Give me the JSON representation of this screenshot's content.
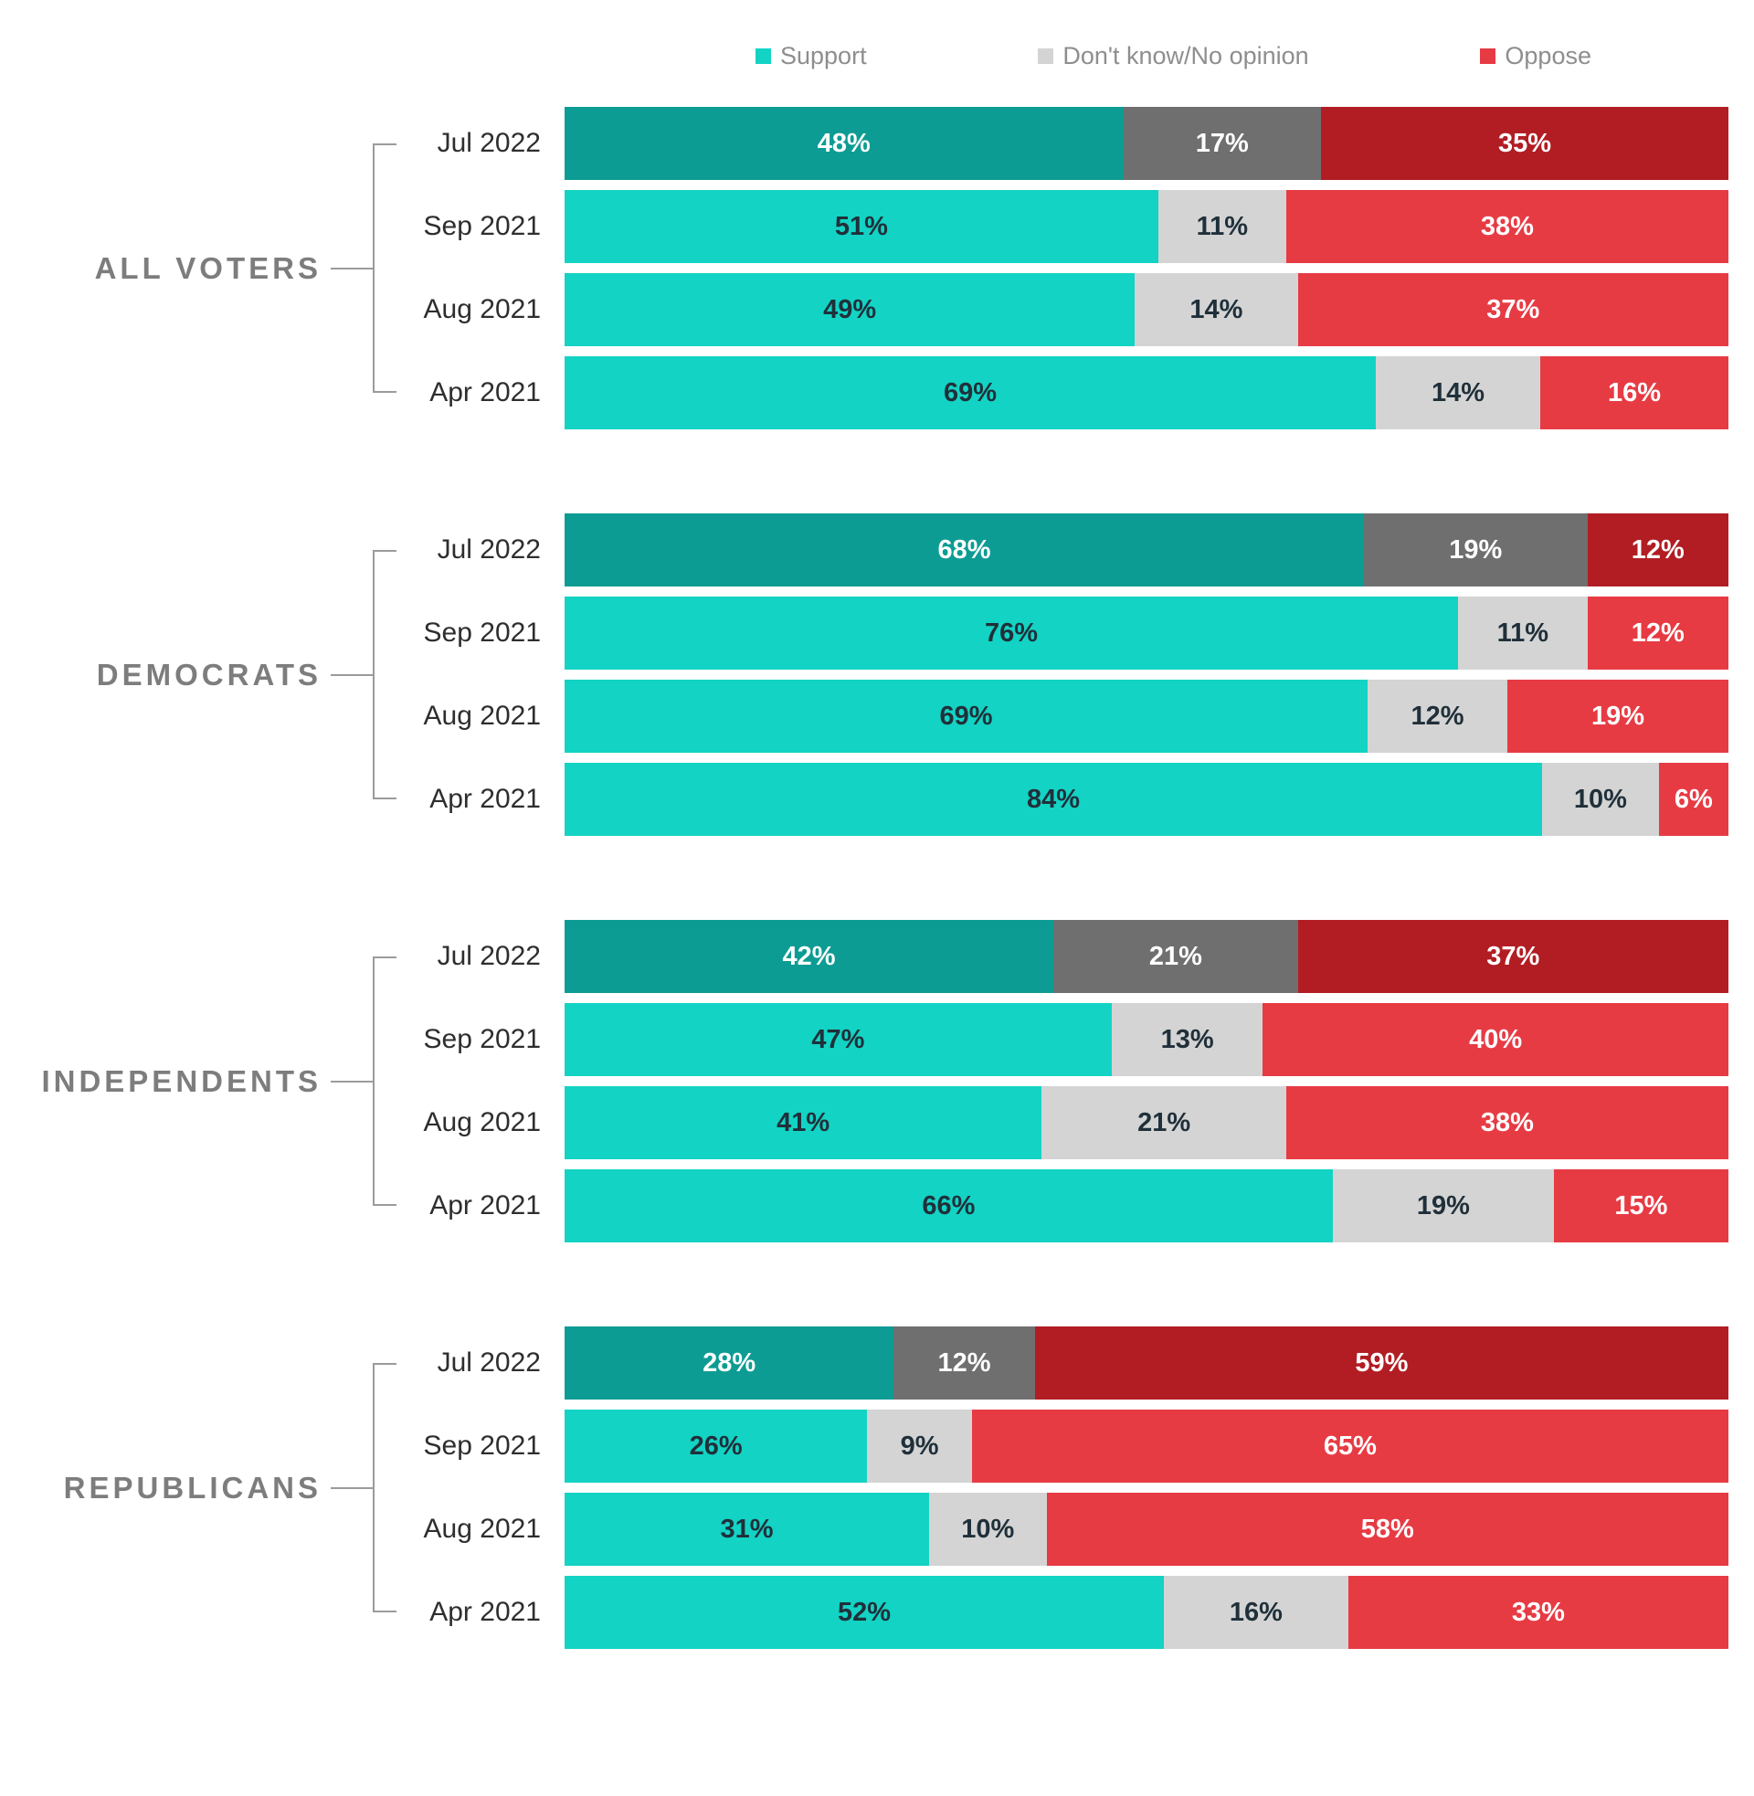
{
  "legend": {
    "items": [
      {
        "key": "support",
        "label": "Support",
        "color": "#13d3c4"
      },
      {
        "key": "dont-know",
        "label": "Don't know/No opinion",
        "color": "#d4d4d4"
      },
      {
        "key": "oppose",
        "label": "Oppose",
        "color": "#e73b44"
      }
    ]
  },
  "colors": {
    "support": "#13d3c4",
    "support_dark": "#0d9c93",
    "neutral": "#d4d4d4",
    "neutral_dark": "#6f6f6f",
    "oppose": "#e73b44",
    "oppose_dark": "#b11d23",
    "label_dark": "#20303a",
    "label_light": "#ffffff",
    "group_label": "#7d7d7d",
    "bracket_line": "#9b9b9b",
    "date_label": "#2e2e2e",
    "legend_text": "#8e8e8e"
  },
  "chart_data": {
    "type": "bar",
    "variant": "horizontal-stacked",
    "unit": "%",
    "x_range": [
      0,
      100
    ],
    "legend_position": "top",
    "series": [
      {
        "key": "support",
        "name": "Support"
      },
      {
        "key": "dont-know",
        "name": "Don't know/No opinion"
      },
      {
        "key": "oppose",
        "name": "Oppose"
      }
    ],
    "groups": [
      {
        "label": "ALL VOTERS",
        "rows": [
          {
            "date": "Jul 2022",
            "values": [
              48,
              17,
              35
            ],
            "emphasis": true
          },
          {
            "date": "Sep 2021",
            "values": [
              51,
              11,
              38
            ],
            "emphasis": false
          },
          {
            "date": "Aug 2021",
            "values": [
              49,
              14,
              37
            ],
            "emphasis": false
          },
          {
            "date": "Apr 2021",
            "values": [
              69,
              14,
              16
            ],
            "emphasis": false
          }
        ]
      },
      {
        "label": "DEMOCRATS",
        "rows": [
          {
            "date": "Jul 2022",
            "values": [
              68,
              19,
              12
            ],
            "emphasis": true
          },
          {
            "date": "Sep 2021",
            "values": [
              76,
              11,
              12
            ],
            "emphasis": false
          },
          {
            "date": "Aug 2021",
            "values": [
              69,
              12,
              19
            ],
            "emphasis": false
          },
          {
            "date": "Apr 2021",
            "values": [
              84,
              10,
              6
            ],
            "emphasis": false
          }
        ]
      },
      {
        "label": "INDEPENDENTS",
        "rows": [
          {
            "date": "Jul 2022",
            "values": [
              42,
              21,
              37
            ],
            "emphasis": true
          },
          {
            "date": "Sep 2021",
            "values": [
              47,
              13,
              40
            ],
            "emphasis": false
          },
          {
            "date": "Aug 2021",
            "values": [
              41,
              21,
              38
            ],
            "emphasis": false
          },
          {
            "date": "Apr 2021",
            "values": [
              66,
              19,
              15
            ],
            "emphasis": false
          }
        ]
      },
      {
        "label": "REPUBLICANS",
        "rows": [
          {
            "date": "Jul 2022",
            "values": [
              28,
              12,
              59
            ],
            "emphasis": true
          },
          {
            "date": "Sep 2021",
            "values": [
              26,
              9,
              65
            ],
            "emphasis": false
          },
          {
            "date": "Aug 2021",
            "values": [
              31,
              10,
              58
            ],
            "emphasis": false
          },
          {
            "date": "Apr 2021",
            "values": [
              52,
              16,
              33
            ],
            "emphasis": false
          }
        ]
      }
    ]
  }
}
